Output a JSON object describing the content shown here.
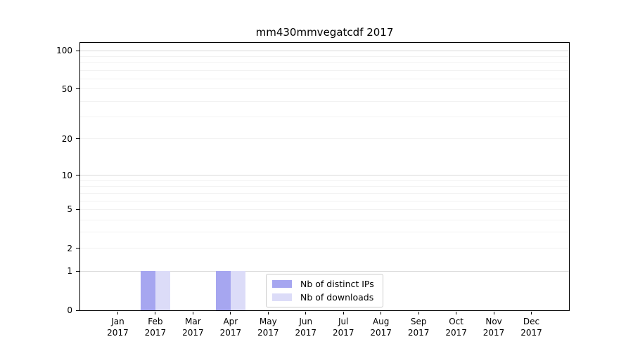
{
  "chart_data": {
    "type": "bar",
    "title": "mm430mmvegatcdf 2017",
    "categories": [
      {
        "month": "Jan",
        "year": "2017"
      },
      {
        "month": "Feb",
        "year": "2017"
      },
      {
        "month": "Mar",
        "year": "2017"
      },
      {
        "month": "Apr",
        "year": "2017"
      },
      {
        "month": "May",
        "year": "2017"
      },
      {
        "month": "Jun",
        "year": "2017"
      },
      {
        "month": "Jul",
        "year": "2017"
      },
      {
        "month": "Aug",
        "year": "2017"
      },
      {
        "month": "Sep",
        "year": "2017"
      },
      {
        "month": "Oct",
        "year": "2017"
      },
      {
        "month": "Nov",
        "year": "2017"
      },
      {
        "month": "Dec",
        "year": "2017"
      }
    ],
    "series": [
      {
        "name": "Nb of distinct IPs",
        "color": "#a6a6f0",
        "values": [
          0,
          1,
          0,
          1,
          0,
          0,
          0,
          0,
          0,
          0,
          0,
          0
        ]
      },
      {
        "name": "Nb of downloads",
        "color": "#dcdcf8",
        "values": [
          0,
          1,
          0,
          1,
          0,
          0,
          0,
          0,
          0,
          0,
          0,
          0
        ]
      }
    ],
    "yscale": "log1p",
    "ylim": [
      0,
      115
    ],
    "yticks": [
      {
        "label": "100",
        "value": 100
      },
      {
        "label": "50",
        "value": 50
      },
      {
        "label": "20",
        "value": 20
      },
      {
        "label": "10",
        "value": 10
      },
      {
        "label": "5",
        "value": 5
      },
      {
        "label": "2",
        "value": 2
      },
      {
        "label": "1",
        "value": 1
      },
      {
        "label": "0",
        "value": 0
      }
    ],
    "major_gridlines": [
      1,
      10,
      100
    ],
    "minor_gridlines": [
      2,
      3,
      4,
      5,
      6,
      7,
      8,
      9,
      20,
      30,
      40,
      50,
      60,
      70,
      80,
      90
    ],
    "grid_colors": {
      "major": "#d9d9d9",
      "minor": "#f2f2f2"
    },
    "legend_position": "lower center"
  }
}
